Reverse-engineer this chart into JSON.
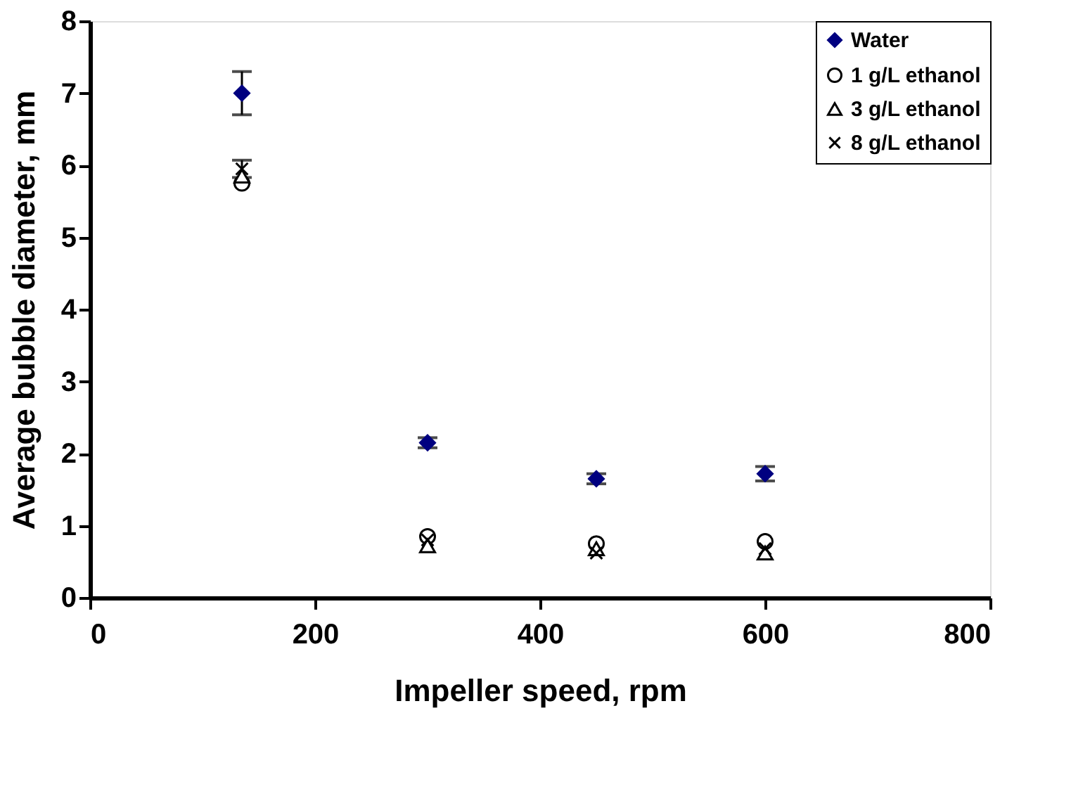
{
  "chart_data": {
    "type": "scatter",
    "xlabel": "Impeller speed, rpm",
    "ylabel": "Average bubble diameter, mm",
    "x": [
      135,
      300,
      450,
      600
    ],
    "series": [
      {
        "name": "Water",
        "color": "#000080",
        "marker": "diamond",
        "values": [
          7.0,
          2.15,
          1.65,
          1.72
        ],
        "errors": [
          0.3,
          0.07,
          0.07,
          0.1
        ]
      },
      {
        "name": "1 g/L ethanol",
        "color": "#000000",
        "marker": "circle",
        "values": [
          5.75,
          0.85,
          0.75,
          0.78
        ]
      },
      {
        "name": "3 g/L ethanol",
        "color": "#000000",
        "marker": "triangle",
        "values": [
          5.85,
          0.72,
          0.68,
          0.62
        ]
      },
      {
        "name": "8 g/L ethanol",
        "color": "#000000",
        "marker": "cross",
        "values": [
          5.95,
          0.8,
          0.62,
          0.68
        ],
        "errors": [
          0.12,
          null,
          null,
          null
        ]
      }
    ],
    "xlim": [
      0,
      800
    ],
    "xticks": [
      0,
      200,
      400,
      600,
      800
    ],
    "ylim": [
      0,
      8
    ],
    "yticks": [
      0,
      1,
      2,
      3,
      4,
      5,
      6,
      7,
      8
    ],
    "grid": false,
    "legend": "top right"
  }
}
